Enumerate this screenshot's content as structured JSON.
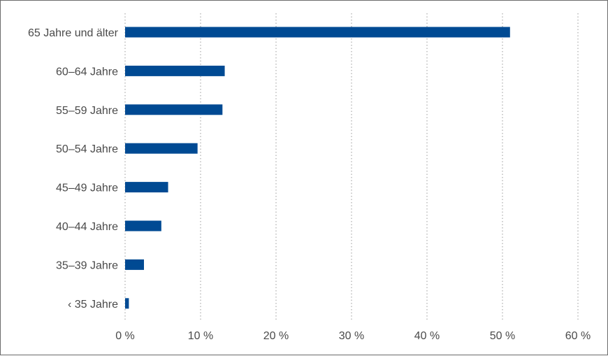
{
  "chart_data": {
    "type": "bar",
    "orientation": "horizontal",
    "categories": [
      "65 Jahre und älter",
      "60–64 Jahre",
      "55–59 Jahre",
      "50–54 Jahre",
      "45–49 Jahre",
      "40–44 Jahre",
      "35–39 Jahre",
      "‹ 35 Jahre"
    ],
    "values": [
      51.0,
      13.2,
      12.9,
      9.6,
      5.7,
      4.8,
      2.5,
      0.5
    ],
    "unit": "%",
    "xlim": [
      0,
      60
    ],
    "ticks": [
      0,
      10,
      20,
      30,
      40,
      50,
      60
    ],
    "tick_labels": [
      "0 %",
      "10 %",
      "20 %",
      "30 %",
      "40 %",
      "50 %",
      "60 %"
    ],
    "grid": "vertical dotted",
    "legend": "none",
    "title": "",
    "xlabel": "",
    "ylabel": "",
    "bar_color": "#004a93"
  }
}
